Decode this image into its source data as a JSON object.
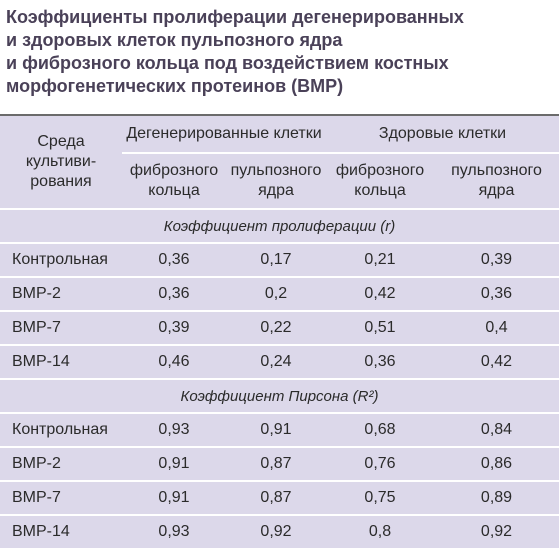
{
  "header": {
    "title_lines": [
      "Коэффициенты пролиферации дегенерированных",
      "и здоровых клеток пульпозного ядра",
      "и фиброзного кольца под воздействием костных",
      "морфогенетических протеинов (BMP)"
    ]
  },
  "table": {
    "row_header_lines": [
      "Среда",
      "культиви-",
      "рования"
    ],
    "groups": [
      {
        "label": "Дегенерированные клетки",
        "columns": [
          [
            "фиброзного",
            "кольца"
          ],
          [
            "пульпозного",
            "ядра"
          ]
        ]
      },
      {
        "label": "Здоровые клетки",
        "columns": [
          [
            "фиброзного",
            "кольца"
          ],
          [
            "пульпозного",
            "ядра"
          ]
        ]
      }
    ],
    "sections": [
      {
        "label": "Коэффициент пролиферации (r)",
        "rows": [
          [
            "Контрольная",
            "0,36",
            "0,17",
            "0,21",
            "0,39"
          ],
          [
            "BMP-2",
            "0,36",
            "0,2",
            "0,42",
            "0,36"
          ],
          [
            "BMP-7",
            "0,39",
            "0,22",
            "0,51",
            "0,4"
          ],
          [
            "BMP-14",
            "0,46",
            "0,24",
            "0,36",
            "0,42"
          ]
        ]
      },
      {
        "label": "Коэффициент Пирсона (R²)",
        "rows": [
          [
            "Контрольная",
            "0,93",
            "0,91",
            "0,68",
            "0,84"
          ],
          [
            "BMP-2",
            "0,91",
            "0,87",
            "0,76",
            "0,86"
          ],
          [
            "BMP-7",
            "0,91",
            "0,87",
            "0,75",
            "0,89"
          ],
          [
            "BMP-14",
            "0,93",
            "0,92",
            "0,8",
            "0,92"
          ]
        ]
      }
    ]
  }
}
